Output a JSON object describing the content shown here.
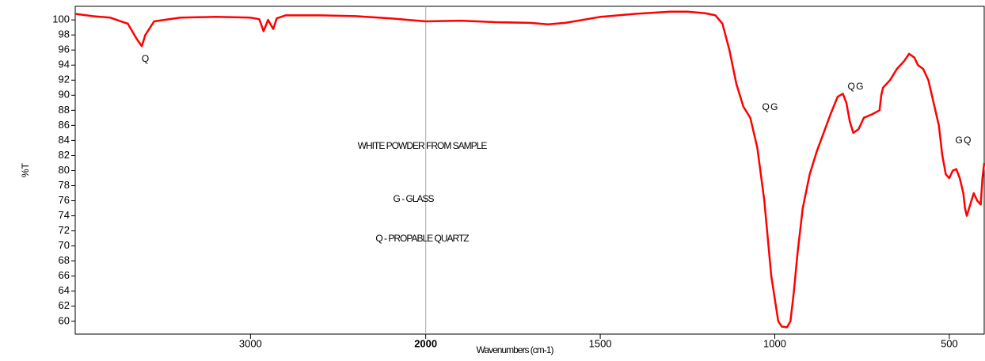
{
  "chart_data": {
    "type": "line",
    "x_label": "Wavenumbers (cm-1)",
    "y_label": "%T",
    "annotations": [
      "Q",
      "Q  G",
      "Q G",
      "G  Q",
      "WHITE POWDER FROM SAMPLE",
      "G - GLASS",
      "Q - PROPABLE QUARTZ"
    ],
    "xlim": [
      4000,
      400
    ],
    "x_scale_break": 2000,
    "xticks": [
      3000,
      2000,
      1500,
      1000,
      500
    ],
    "ylim": [
      58.3,
      101.8
    ],
    "yticks": [
      60,
      62,
      64,
      66,
      68,
      70,
      72,
      74,
      76,
      78,
      80,
      82,
      84,
      86,
      88,
      90,
      92,
      94,
      96,
      98,
      100
    ],
    "color": "#ff0000",
    "x": [
      4000,
      3900,
      3800,
      3700,
      3650,
      3620,
      3600,
      3550,
      3400,
      3200,
      3000,
      2950,
      2925,
      2900,
      2870,
      2850,
      2800,
      2600,
      2400,
      2200,
      2000,
      1900,
      1800,
      1700,
      1650,
      1600,
      1500,
      1400,
      1300,
      1250,
      1200,
      1170,
      1150,
      1130,
      1110,
      1090,
      1070,
      1050,
      1030,
      1010,
      1000,
      990,
      980,
      965,
      955,
      945,
      935,
      920,
      900,
      880,
      860,
      840,
      820,
      805,
      795,
      785,
      775,
      760,
      745,
      720,
      700,
      695,
      690,
      670,
      650,
      630,
      615,
      600,
      590,
      575,
      560,
      545,
      530,
      520,
      510,
      500,
      490,
      480,
      470,
      460,
      455,
      450,
      440,
      430,
      420,
      410,
      405,
      400
    ],
    "values": [
      100.8,
      100.5,
      100.3,
      99.5,
      97.5,
      96.5,
      98,
      99.8,
      100.3,
      100.4,
      100.3,
      100.1,
      98.5,
      100,
      98.8,
      100.2,
      100.6,
      100.6,
      100.5,
      100.2,
      99.8,
      99.9,
      99.7,
      99.6,
      99.4,
      99.6,
      100.4,
      100.8,
      101.1,
      101.1,
      100.9,
      100.6,
      99.5,
      96,
      91.5,
      88.5,
      87,
      83,
      76,
      66,
      63,
      60,
      59.3,
      59.2,
      60,
      64,
      69,
      75,
      79.5,
      82.5,
      85,
      87.5,
      89.8,
      90.2,
      89,
      86.5,
      85,
      85.5,
      87,
      87.5,
      88,
      90,
      91,
      92,
      93.5,
      94.5,
      95.5,
      95,
      94,
      93.5,
      92,
      89,
      86,
      82,
      79.5,
      79,
      80,
      80.2,
      79,
      77,
      75,
      74,
      75.5,
      77,
      76,
      75.5,
      79,
      81
    ]
  }
}
